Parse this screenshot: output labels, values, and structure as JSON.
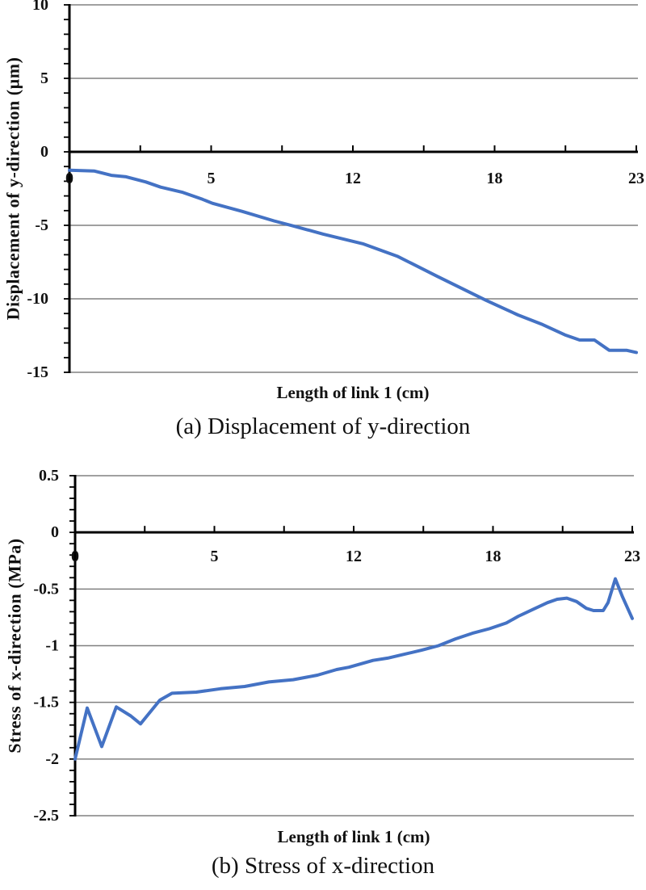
{
  "page": {
    "background": "#ffffff"
  },
  "colors": {
    "series_line": "#4472C4",
    "gridline": "#808080",
    "axis": "#000000",
    "text": "#111111"
  },
  "chart_data": [
    {
      "id": "chart-a",
      "type": "line",
      "caption": "(a) Displacement of y-direction",
      "xlabel": "Length of link 1 (cm)",
      "ylabel": "Displacement of y-direction (µm)",
      "xlim": [
        0,
        23
      ],
      "ylim": [
        -15,
        10
      ],
      "x_tick_labels": [
        "0",
        "5",
        "12",
        "18",
        "23"
      ],
      "y_tick_values": [
        10,
        5,
        0,
        -5,
        -10,
        -15
      ],
      "y_minor_step": 1,
      "x_tick_count": 9,
      "grid": "horizontal",
      "legend": "none",
      "series": [
        {
          "name": "Displacement of y-direction",
          "x": [
            0,
            1.0,
            1.7,
            2.3,
            3.1,
            3.7,
            4.6,
            5.4,
            5.8,
            7.0,
            8.3,
            9.1,
            10.3,
            11.9,
            13.3,
            14.9,
            16.9,
            18.2,
            19.2,
            20.1,
            20.7,
            21.3,
            21.9,
            22.6,
            23
          ],
          "y": [
            -1.25,
            -1.3,
            -1.6,
            -1.7,
            -2.05,
            -2.4,
            -2.76,
            -3.23,
            -3.5,
            -4.05,
            -4.7,
            -5.05,
            -5.6,
            -6.25,
            -7.1,
            -8.45,
            -10.1,
            -11.1,
            -11.75,
            -12.45,
            -12.8,
            -12.8,
            -13.5,
            -13.5,
            -13.65
          ]
        }
      ]
    },
    {
      "id": "chart-b",
      "type": "line",
      "caption": "(b) Stress of x-direction",
      "xlabel": "Length of link 1 (cm)",
      "ylabel": "Stress of x-direction (MPa)",
      "xlim": [
        0,
        23
      ],
      "ylim": [
        -2.5,
        0.5
      ],
      "x_tick_labels": [
        "0",
        "5",
        "12",
        "18",
        "23"
      ],
      "y_tick_values": [
        0.5,
        0,
        -0.5,
        -1,
        -1.5,
        -2,
        -2.5
      ],
      "y_minor_step": 0.1,
      "x_tick_count": 9,
      "grid": "horizontal",
      "legend": "none",
      "series": [
        {
          "name": "Stress of x-direction",
          "x": [
            0,
            0.5,
            1.1,
            1.7,
            2.3,
            2.7,
            3.5,
            4,
            5,
            6,
            7,
            8,
            9,
            10,
            10.8,
            11.3,
            12.3,
            12.9,
            13.5,
            14.3,
            15,
            15.7,
            16.4,
            17.1,
            17.8,
            18.3,
            18.9,
            19.5,
            19.9,
            20.3,
            20.7,
            21.1,
            21.4,
            21.8,
            22.0,
            22.3,
            22.6,
            23
          ],
          "y": [
            -2.0,
            -1.55,
            -1.89,
            -1.54,
            -1.62,
            -1.69,
            -1.48,
            -1.42,
            -1.41,
            -1.38,
            -1.36,
            -1.32,
            -1.3,
            -1.26,
            -1.21,
            -1.19,
            -1.13,
            -1.11,
            -1.08,
            -1.04,
            -1.0,
            -0.94,
            -0.89,
            -0.85,
            -0.8,
            -0.74,
            -0.68,
            -0.62,
            -0.59,
            -0.58,
            -0.61,
            -0.67,
            -0.69,
            -0.69,
            -0.62,
            -0.41,
            -0.57,
            -0.76
          ]
        }
      ]
    }
  ]
}
